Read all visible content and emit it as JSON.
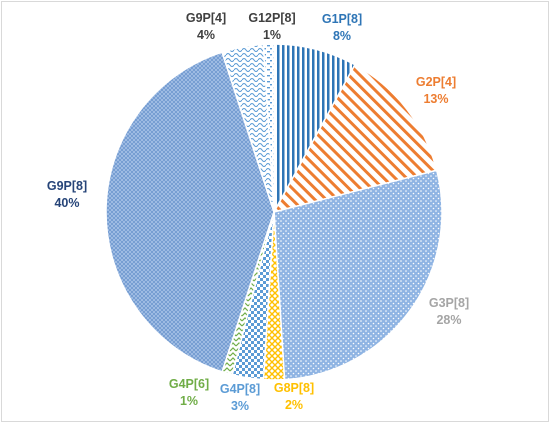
{
  "chart_data": {
    "type": "pie",
    "title": "",
    "slices": [
      {
        "label": "G1P[8]",
        "value": 8,
        "pct_text": "8%",
        "color": "#2e75b6",
        "pattern": "vertical-stripes"
      },
      {
        "label": "G2P[4]",
        "value": 13,
        "pct_text": "13%",
        "color": "#ed7d31",
        "pattern": "diagonal-stripes"
      },
      {
        "label": "G3P[8]",
        "value": 28,
        "pct_text": "28%",
        "color": "#a5a5a5",
        "pattern": "dots",
        "fill_color": "#8fb4e3"
      },
      {
        "label": "G8P[8]",
        "value": 2,
        "pct_text": "2%",
        "color": "#ffc000",
        "pattern": "diagonal-cross"
      },
      {
        "label": "G4P[8]",
        "value": 3,
        "pct_text": "3%",
        "color": "#5b9bd5",
        "pattern": "checker"
      },
      {
        "label": "G4P[6]",
        "value": 1,
        "pct_text": "1%",
        "color": "#70ad47",
        "pattern": "zigzag"
      },
      {
        "label": "G9P[8]",
        "value": 40,
        "pct_text": "40%",
        "color": "#264478",
        "pattern": "fine-cross",
        "fill_color": "#8fb4e3"
      },
      {
        "label": "G9P[4]",
        "value": 4,
        "pct_text": "4%",
        "color": "#404040",
        "pattern": "wave",
        "fill_color": "#5b9bd5"
      },
      {
        "label": "G12P[8]",
        "value": 1,
        "pct_text": "1%",
        "color": "#404040",
        "pattern": "dashes",
        "fill_color": "#5b9bd5"
      }
    ],
    "start_angle_deg": 0,
    "direction": "clockwise",
    "legend": "none"
  }
}
